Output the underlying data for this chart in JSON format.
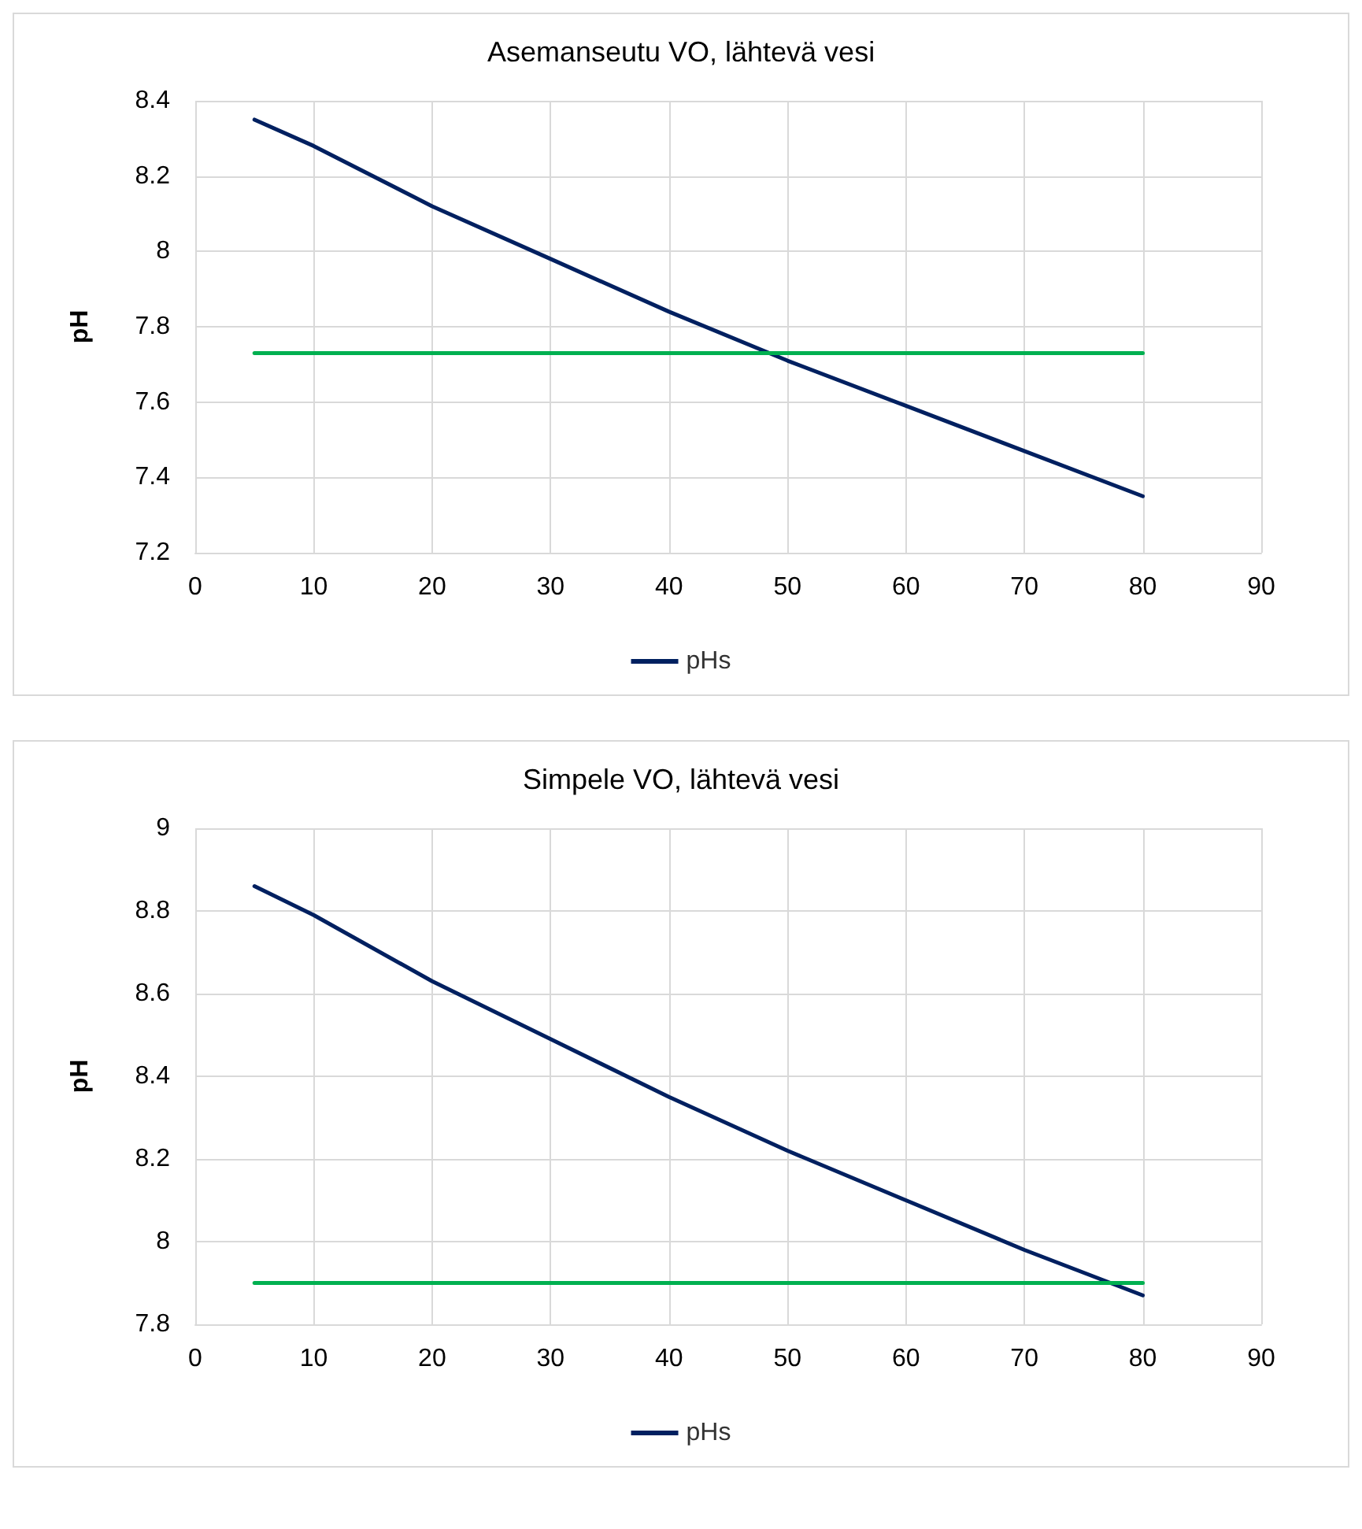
{
  "chart_data": [
    {
      "type": "line",
      "title": "Asemanseutu VO, lähtevä vesi",
      "ylabel": "pH",
      "xlim": [
        0,
        90
      ],
      "xticks": [
        0,
        10,
        20,
        30,
        40,
        50,
        60,
        70,
        80,
        90
      ],
      "ylim": [
        7.2,
        8.4
      ],
      "yticks": [
        7.2,
        7.4,
        7.6,
        7.8,
        8,
        8.2,
        8.4
      ],
      "grid": true,
      "legend": "bottom",
      "marker": "none",
      "line_style": "solid",
      "series": [
        {
          "name": "pHs",
          "color": "#002060",
          "x": [
            5,
            10,
            20,
            30,
            40,
            50,
            60,
            70,
            80
          ],
          "values": [
            8.35,
            8.28,
            8.12,
            7.98,
            7.84,
            7.71,
            7.59,
            7.47,
            7.35
          ]
        },
        {
          "color": "#00b050",
          "x": [
            5,
            80
          ],
          "values": [
            7.73,
            7.73
          ]
        }
      ]
    },
    {
      "type": "line",
      "title": "Simpele VO, lähtevä vesi",
      "ylabel": "pH",
      "xlim": [
        0,
        90
      ],
      "xticks": [
        0,
        10,
        20,
        30,
        40,
        50,
        60,
        70,
        80,
        90
      ],
      "ylim": [
        7.8,
        9
      ],
      "yticks": [
        7.8,
        8,
        8.2,
        8.4,
        8.6,
        8.8,
        9
      ],
      "grid": true,
      "legend": "bottom",
      "marker": "none",
      "line_style": "solid",
      "series": [
        {
          "name": "pHs",
          "color": "#002060",
          "x": [
            5,
            10,
            20,
            30,
            40,
            50,
            60,
            70,
            80
          ],
          "values": [
            8.86,
            8.79,
            8.63,
            8.49,
            8.35,
            8.22,
            8.1,
            7.98,
            7.87
          ]
        },
        {
          "color": "#00b050",
          "x": [
            5,
            80
          ],
          "values": [
            7.9,
            7.9
          ]
        }
      ]
    }
  ]
}
